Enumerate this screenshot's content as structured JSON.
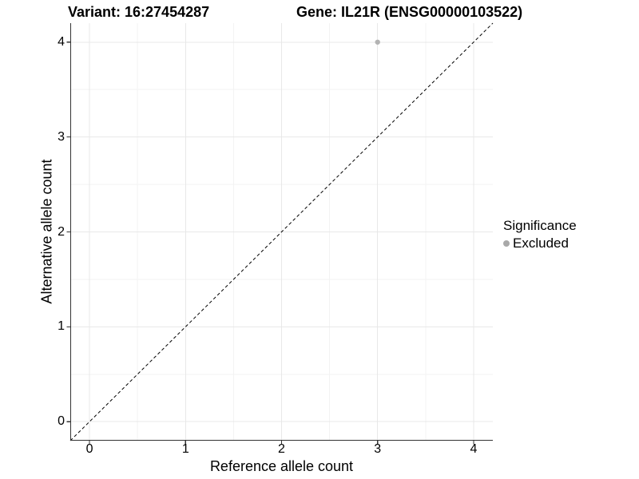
{
  "titles": {
    "left": "Variant: 16:27454287",
    "right": "Gene: IL21R (ENSG00000103522)"
  },
  "chart_data": {
    "type": "scatter",
    "title_left": "Variant: 16:27454287",
    "title_right": "Gene: IL21R (ENSG00000103522)",
    "xlabel": "Reference allele count",
    "ylabel": "Alternative allele count",
    "xlim": [
      -0.2,
      4.2
    ],
    "ylim": [
      -0.2,
      4.2
    ],
    "xticks": [
      0,
      1,
      2,
      3,
      4
    ],
    "yticks": [
      0,
      1,
      2,
      3,
      4
    ],
    "minor_step": 0.5,
    "grid": true,
    "points": [
      {
        "x": 3,
        "y": 4,
        "series": "Excluded"
      }
    ],
    "abline": {
      "slope": 1,
      "intercept": 0,
      "style": "dashed"
    },
    "legend": {
      "title": "Significance",
      "position": "right",
      "entries": [
        {
          "label": "Excluded",
          "color": "#a9a9a9",
          "marker": "circle"
        }
      ]
    },
    "colors": {
      "point": "#b3b3b3",
      "grid_major": "#e8e8e8",
      "grid_minor": "#f3f3f3",
      "axis": "#333333",
      "abline": "#000000",
      "text": "#000000"
    }
  }
}
